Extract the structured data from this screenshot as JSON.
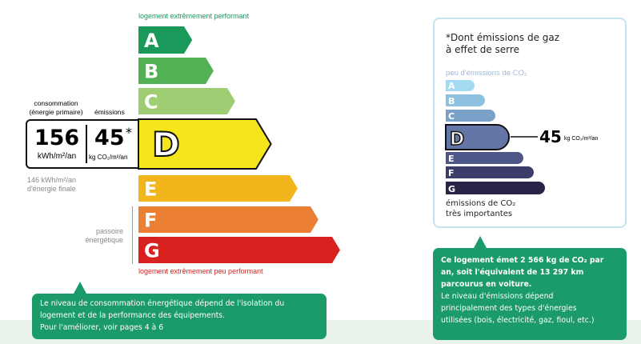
{
  "energy": {
    "top_label": "logement extrêmement performant",
    "bottom_label": "logement extrêmement peu performant",
    "classes": [
      {
        "letter": "A",
        "color": "#1a9a5a"
      },
      {
        "letter": "B",
        "color": "#52b153"
      },
      {
        "letter": "C",
        "color": "#9fcd73"
      },
      {
        "letter": "D",
        "color": "#f5e51d"
      },
      {
        "letter": "E",
        "color": "#f2b51c"
      },
      {
        "letter": "F",
        "color": "#eb8035"
      },
      {
        "letter": "G",
        "color": "#d7221f"
      }
    ],
    "current_class": "D",
    "consumption_header": "consommation",
    "consumption_header2": "(énergie primaire)",
    "emissions_header": "émissions",
    "consumption_value": "156",
    "consumption_unit": "kWh/m²/an",
    "emissions_value": "45",
    "emissions_star": "*",
    "emissions_unit": "kg CO₂/m²/an",
    "final_energy_line1": "146 kWh/m²/an",
    "final_energy_line2": "d'énergie finale",
    "passoire_line1": "passoire",
    "passoire_line2": "énergétique"
  },
  "ges": {
    "note_line1": "*Dont émissions de gaz",
    "note_line2": "à effet de serre",
    "top_label": "peu d'émissions de CO₂",
    "bottom_line1": "émissions de CO₂",
    "bottom_line2": "très importantes",
    "classes": [
      {
        "letter": "A",
        "color": "#a3dbf3"
      },
      {
        "letter": "B",
        "color": "#8ec1df"
      },
      {
        "letter": "C",
        "color": "#7aa2c8"
      },
      {
        "letter": "D",
        "color": "#6476a6"
      },
      {
        "letter": "E",
        "color": "#4d5787"
      },
      {
        "letter": "F",
        "color": "#3a3d68"
      },
      {
        "letter": "G",
        "color": "#2a2347"
      }
    ],
    "current_class": "D",
    "value": "45",
    "unit": "kg CO₂/m²/an"
  },
  "callout_left": {
    "line1": "Le niveau de consommation énergétique dépend de l'isolation du",
    "line2": "logement et de la performance des équipements.",
    "line3": "Pour l'améliorer, voir pages 4 à 6"
  },
  "callout_right": {
    "bold1": "Ce logement émet 2 566 kg de CO₂ par",
    "bold2": "an, soit l'équivalent de 13 297 km",
    "bold3": "parcourus en voiture.",
    "line4": "Le niveau d'émissions dépend",
    "line5": "principalement des types d'énergies",
    "line6": "utilisées (bois, électricité, gaz, fioul, etc.)"
  }
}
